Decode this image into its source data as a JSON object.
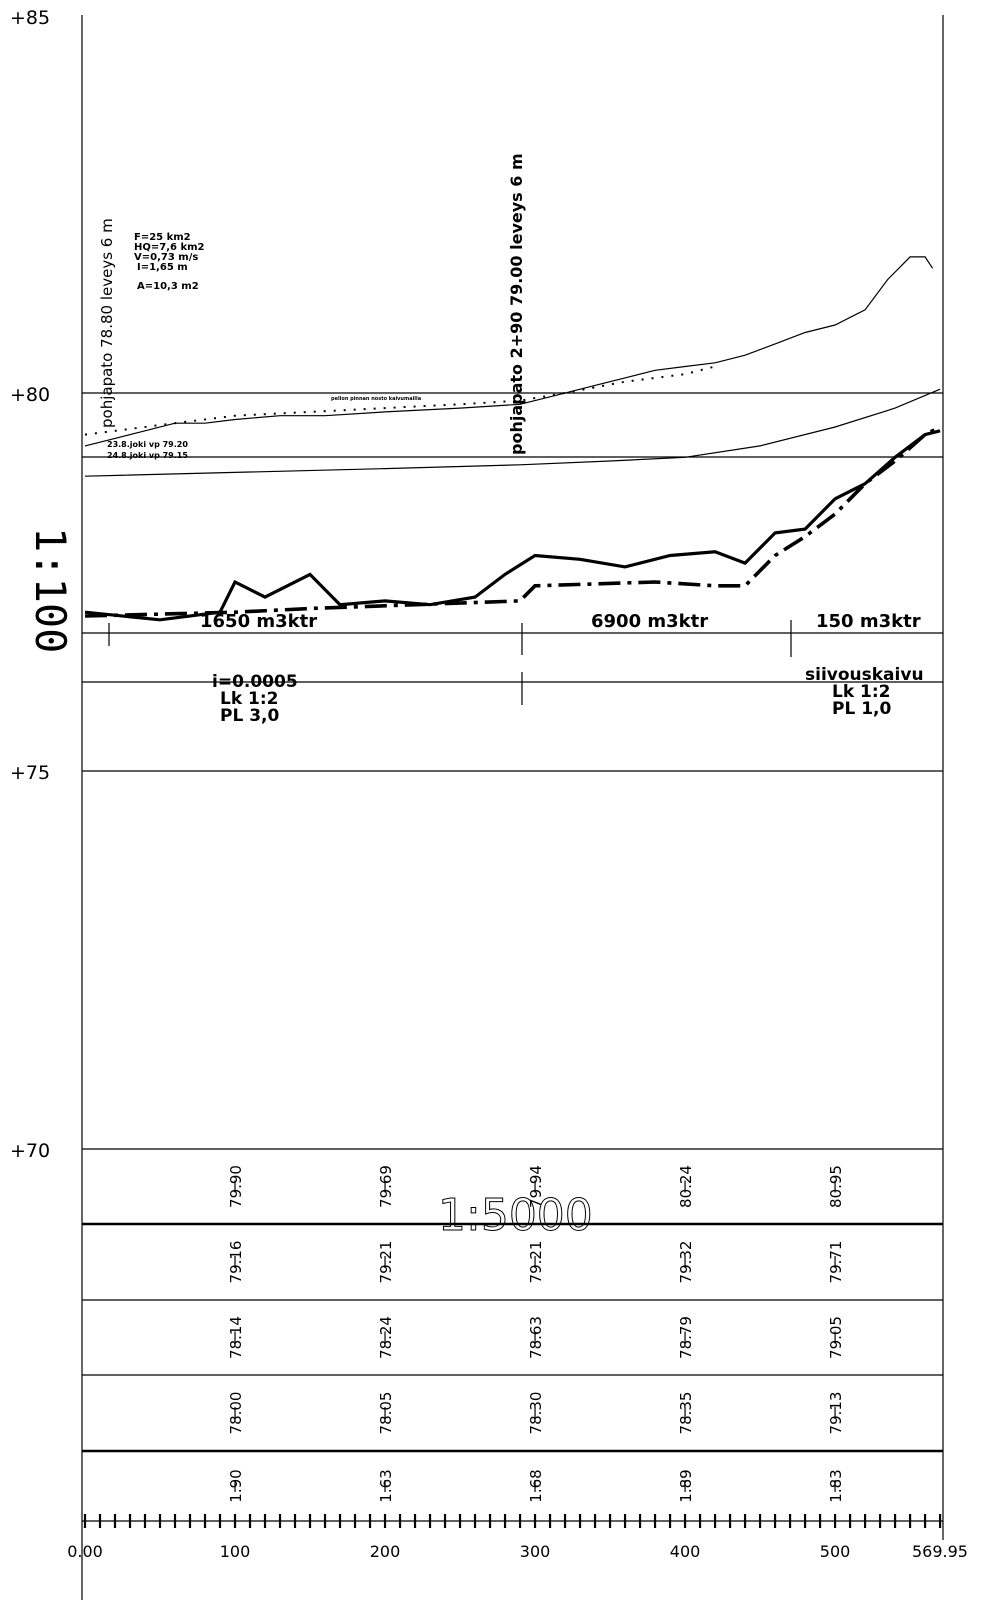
{
  "elevation_labels": [
    "+85",
    "+80",
    "+75",
    "+70"
  ],
  "scale": {
    "vertical": "1:100",
    "horizontal": "1:5000"
  },
  "dams": [
    "pohjapato 78.80 leveys 6 m",
    "pohjapato 2+90  79.00 leveys 6 m"
  ],
  "hydraulics": [
    "F=25 km2",
    "HQ=7,6 km2",
    "V=0,73 m/s",
    "I=1,65 m",
    "A=10,3 m2"
  ],
  "water_levels": [
    "23.8.joki vp 79.20",
    "24.8.joki vp 79.15"
  ],
  "annotation_small": "pellon pinnan nosto kaivumailla",
  "sections": [
    {
      "volume": "1650 m3ktr",
      "notes": [
        "i=0.0005",
        "Lk 1:2",
        "PL 3,0"
      ]
    },
    {
      "volume": "6900  m3ktr",
      "notes": []
    },
    {
      "volume": "150 m3ktr",
      "notes": [
        "siivouskaivu",
        "Lk 1:2",
        "PL 1,0"
      ]
    }
  ],
  "table": {
    "rows": [
      [
        "79.90",
        "79.69",
        "79.94",
        "80.24",
        "80.95"
      ],
      [
        "79.16",
        "79.21",
        "79.21",
        "79.32",
        "79.71"
      ],
      [
        "78.14",
        "78.24",
        "78.63",
        "78.79",
        "79.05"
      ],
      [
        "78.00",
        "78.05",
        "78.30",
        "78.35",
        "79.13"
      ],
      [
        "1.90",
        "1.63",
        "1.68",
        "1.89",
        "1.83"
      ]
    ],
    "chainages": [
      100,
      200,
      300,
      400,
      500
    ]
  },
  "axis_labels": [
    "0.00",
    "100",
    "200",
    "300",
    "400",
    "500",
    "569.95"
  ],
  "chart_data": {
    "type": "line",
    "x_range": [
      0,
      569.95
    ],
    "y_range": [
      68,
      85
    ],
    "series": [
      {
        "values": [
          [
            0,
            79.3
          ],
          [
            20,
            79.4
          ],
          [
            40,
            79.5
          ],
          [
            60,
            79.6
          ],
          [
            80,
            79.6
          ],
          [
            100,
            79.65
          ],
          [
            130,
            79.7
          ],
          [
            160,
            79.7
          ],
          [
            200,
            79.75
          ],
          [
            250,
            79.8
          ],
          [
            290,
            79.85
          ],
          [
            310,
            79.95
          ],
          [
            340,
            80.1
          ],
          [
            360,
            80.2
          ],
          [
            380,
            80.3
          ],
          [
            400,
            80.35
          ],
          [
            420,
            80.4
          ],
          [
            440,
            80.5
          ],
          [
            460,
            80.65
          ],
          [
            480,
            80.8
          ],
          [
            500,
            80.9
          ],
          [
            520,
            81.1
          ],
          [
            535,
            81.5
          ],
          [
            550,
            81.8
          ],
          [
            560,
            81.8
          ],
          [
            565,
            81.65
          ]
        ]
      },
      {
        "values": [
          [
            0,
            79.45
          ],
          [
            60,
            79.6
          ],
          [
            100,
            79.7
          ],
          [
            150,
            79.75
          ],
          [
            200,
            79.8
          ],
          [
            250,
            79.85
          ],
          [
            290,
            79.9
          ],
          [
            320,
            80.0
          ],
          [
            360,
            80.15
          ],
          [
            400,
            80.25
          ],
          [
            420,
            80.35
          ]
        ]
      },
      {
        "values": [
          [
            0,
            78.9
          ],
          [
            100,
            78.95
          ],
          [
            200,
            79.0
          ],
          [
            290,
            79.05
          ],
          [
            350,
            79.1
          ],
          [
            400,
            79.15
          ],
          [
            450,
            79.3
          ],
          [
            500,
            79.55
          ],
          [
            540,
            79.8
          ],
          [
            570,
            80.05
          ]
        ]
      },
      {
        "values": [
          [
            0,
            77.1
          ],
          [
            50,
            77.0
          ],
          [
            90,
            77.1
          ],
          [
            100,
            77.5
          ],
          [
            120,
            77.3
          ],
          [
            150,
            77.6
          ],
          [
            170,
            77.2
          ],
          [
            200,
            77.25
          ],
          [
            230,
            77.2
          ],
          [
            260,
            77.3
          ],
          [
            280,
            77.6
          ],
          [
            300,
            77.85
          ],
          [
            330,
            77.8
          ],
          [
            360,
            77.7
          ],
          [
            390,
            77.85
          ],
          [
            420,
            77.9
          ],
          [
            440,
            77.75
          ],
          [
            460,
            78.15
          ],
          [
            480,
            78.2
          ],
          [
            500,
            78.6
          ],
          [
            520,
            78.8
          ],
          [
            540,
            79.15
          ],
          [
            560,
            79.45
          ],
          [
            570,
            79.5
          ]
        ]
      },
      {
        "values": [
          [
            0,
            77.05
          ],
          [
            100,
            77.1
          ],
          [
            150,
            77.15
          ],
          [
            290,
            77.25
          ],
          [
            300,
            77.45
          ],
          [
            380,
            77.5
          ],
          [
            420,
            77.45
          ],
          [
            440,
            77.45
          ],
          [
            460,
            77.85
          ],
          [
            480,
            78.1
          ],
          [
            500,
            78.4
          ],
          [
            520,
            78.8
          ],
          [
            540,
            79.1
          ],
          [
            560,
            79.45
          ],
          [
            570,
            79.55
          ]
        ]
      }
    ]
  }
}
